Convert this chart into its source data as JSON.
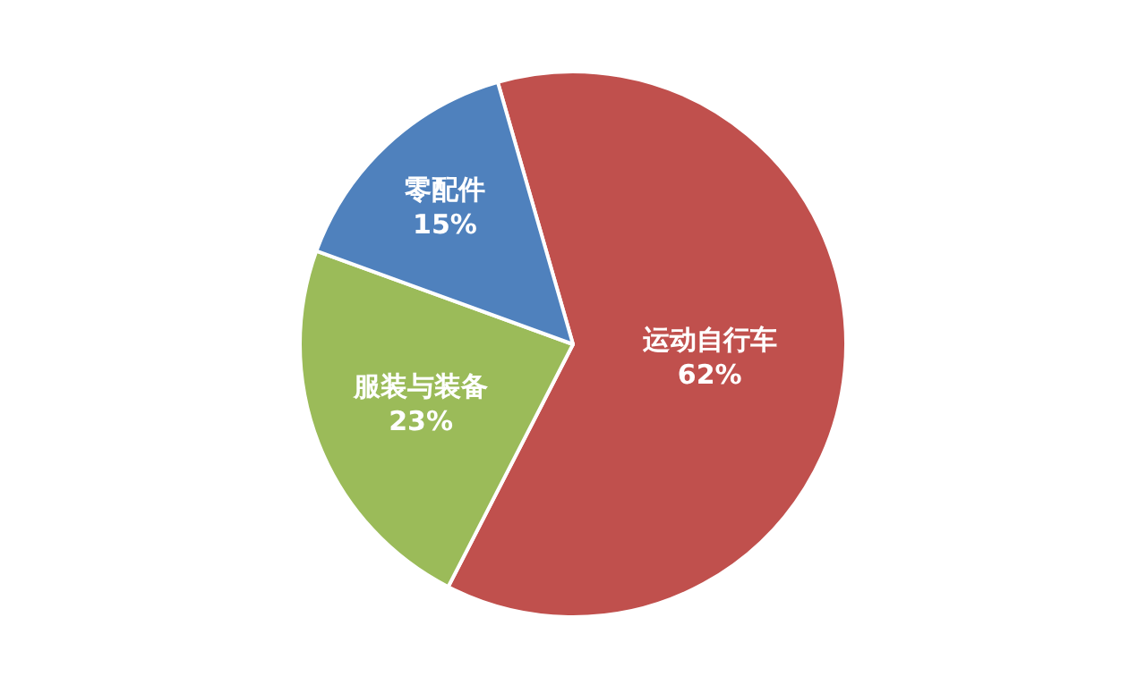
{
  "chart_data": {
    "type": "pie",
    "categories": [
      "运动自行车",
      "服装与装备",
      "零配件"
    ],
    "values": [
      62,
      23,
      15
    ],
    "value_labels": [
      "62%",
      "23%",
      "15%"
    ],
    "colors": [
      "#c0504d",
      "#9bbb59",
      "#4f81bd"
    ],
    "legend": false
  }
}
